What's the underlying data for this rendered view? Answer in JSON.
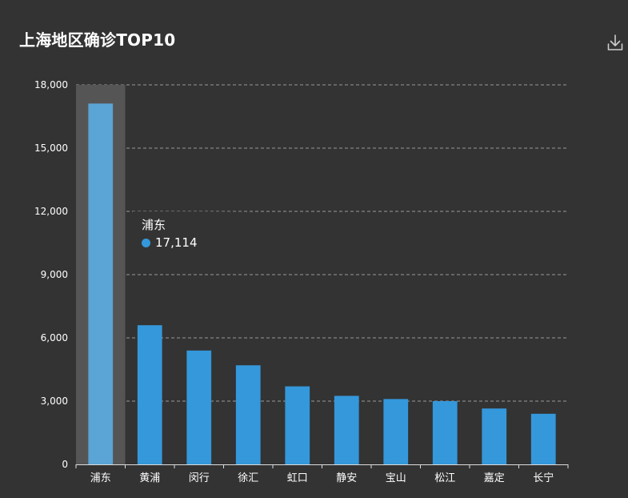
{
  "title": "上海地区确诊TOP10",
  "toolbar": {
    "download_icon": "download-icon"
  },
  "colors": {
    "background": "#333333",
    "bar": "#3498db",
    "bar_highlight": "#5aa4d6",
    "hover_band": "#555555",
    "text": "#ffffff",
    "grid": "#999999"
  },
  "chart_data": {
    "type": "bar",
    "title": "上海地区确诊TOP10",
    "categories": [
      "浦东",
      "黄浦",
      "闵行",
      "徐汇",
      "虹口",
      "静安",
      "宝山",
      "松江",
      "嘉定",
      "长宁"
    ],
    "values": [
      17114,
      6600,
      5400,
      4700,
      3700,
      3250,
      3100,
      3000,
      2650,
      2400
    ],
    "ylim": [
      0,
      18000
    ],
    "yticks": [
      0,
      3000,
      6000,
      9000,
      12000,
      15000,
      18000
    ],
    "ytick_labels": [
      "0",
      "3,000",
      "6,000",
      "9,000",
      "12,000",
      "15,000",
      "18,000"
    ],
    "grid": true,
    "highlighted_index": 0
  },
  "tooltip": {
    "name": "浦东",
    "value": "17,114"
  }
}
